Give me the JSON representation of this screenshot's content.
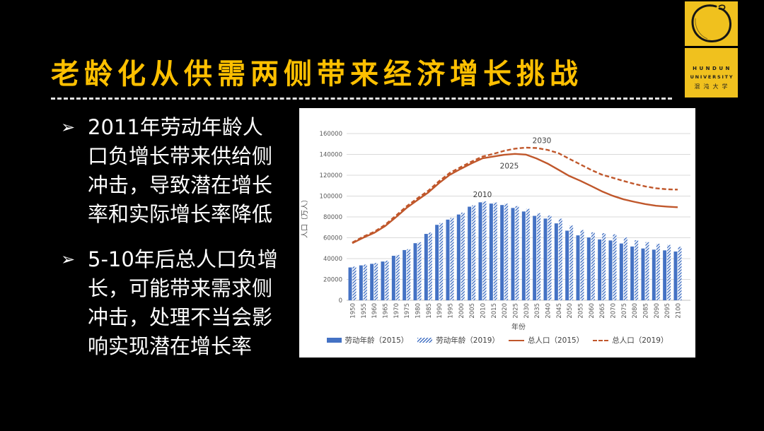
{
  "slide": {
    "title": "老龄化从供需两侧带来经济增长挑战",
    "bullet_marker": "➢",
    "bullets": [
      "2011年劳动年龄人\n口负增长带来供给侧\n冲击，导致潜在增长\n率和实际增长率降低",
      "5-10年后总人口负增\n长，可能带来需求侧\n冲击，处理不当会影\n响实现潜在增长率"
    ]
  },
  "logo": {
    "name_en_line1": "HUNDUN",
    "name_en_line2": "UNIVERSITY",
    "name_cn": "混沌大学",
    "brand_yellow": "#F0C11E"
  },
  "colors": {
    "background": "#000000",
    "title_yellow": "#FFC000",
    "body_text": "#FFFFFF",
    "chart_background": "#FFFFFF",
    "bar_blue": "#4472C4",
    "line_orange": "#C0572B",
    "gridline": "#D9D9D9",
    "axis_text": "#595959"
  },
  "chart_data": {
    "type": "bar",
    "subtype": "bar+line combo",
    "x": [
      1950,
      1955,
      1960,
      1965,
      1970,
      1975,
      1980,
      1985,
      1990,
      1995,
      2000,
      2005,
      2010,
      2015,
      2020,
      2025,
      2030,
      2035,
      2040,
      2045,
      2050,
      2055,
      2060,
      2065,
      2070,
      2075,
      2080,
      2085,
      2090,
      2095,
      2100
    ],
    "series": [
      {
        "name": "劳动年龄（2015）",
        "type": "bar",
        "style": "solid",
        "color": "#4472C4",
        "values": [
          31500,
          33500,
          35000,
          37200,
          42700,
          48200,
          54800,
          63700,
          72400,
          77400,
          82300,
          89800,
          94000,
          92800,
          91400,
          88600,
          85200,
          81000,
          78400,
          73800,
          66800,
          62300,
          60300,
          58400,
          57400,
          54500,
          51600,
          49700,
          48600,
          47900,
          46800
        ]
      },
      {
        "name": "劳动年龄（2019）",
        "type": "bar",
        "style": "hatched",
        "color": "#4472C4",
        "values": [
          32300,
          34300,
          35800,
          38000,
          43500,
          49000,
          55700,
          65000,
          74100,
          79000,
          84100,
          91100,
          94900,
          93800,
          92700,
          90400,
          87700,
          83600,
          81300,
          78300,
          71700,
          67400,
          65200,
          64400,
          63300,
          60300,
          57600,
          55800,
          54200,
          53100,
          51300
        ]
      },
      {
        "name": "总人口（2015）",
        "type": "line",
        "style": "solid",
        "color": "#C0572B",
        "values": [
          54800,
          60000,
          64600,
          71000,
          79500,
          88600,
          96100,
          103400,
          112500,
          120500,
          126100,
          131400,
          136200,
          137900,
          139600,
          140500,
          139800,
          136000,
          131200,
          125300,
          119300,
          114800,
          109800,
          104600,
          100300,
          96900,
          94500,
          92300,
          90700,
          89900,
          89300
        ]
      },
      {
        "name": "总人口（2019）",
        "type": "line",
        "style": "dashed",
        "color": "#C0572B",
        "values": [
          55400,
          61000,
          65600,
          72200,
          81000,
          90100,
          97800,
          105100,
          114300,
          122300,
          127800,
          133100,
          137900,
          140500,
          143400,
          145500,
          146500,
          146100,
          144300,
          141200,
          135800,
          130500,
          125200,
          120600,
          117600,
          114500,
          111700,
          109300,
          107500,
          106500,
          106200
        ]
      }
    ],
    "xlabel": "年份",
    "ylabel": "人口（万人）",
    "ylim": [
      0,
      160000
    ],
    "y_ticks": [
      0,
      20000,
      40000,
      60000,
      80000,
      100000,
      120000,
      140000,
      160000
    ],
    "grid": true,
    "legend_position": "bottom",
    "annotations": [
      {
        "text": "2010",
        "at_year": 2010,
        "at_value": 101000
      },
      {
        "text": "2025",
        "at_year": 2022.4,
        "at_value": 128500
      },
      {
        "text": "2030",
        "at_year": 2037.4,
        "at_value": 152900
      }
    ]
  }
}
